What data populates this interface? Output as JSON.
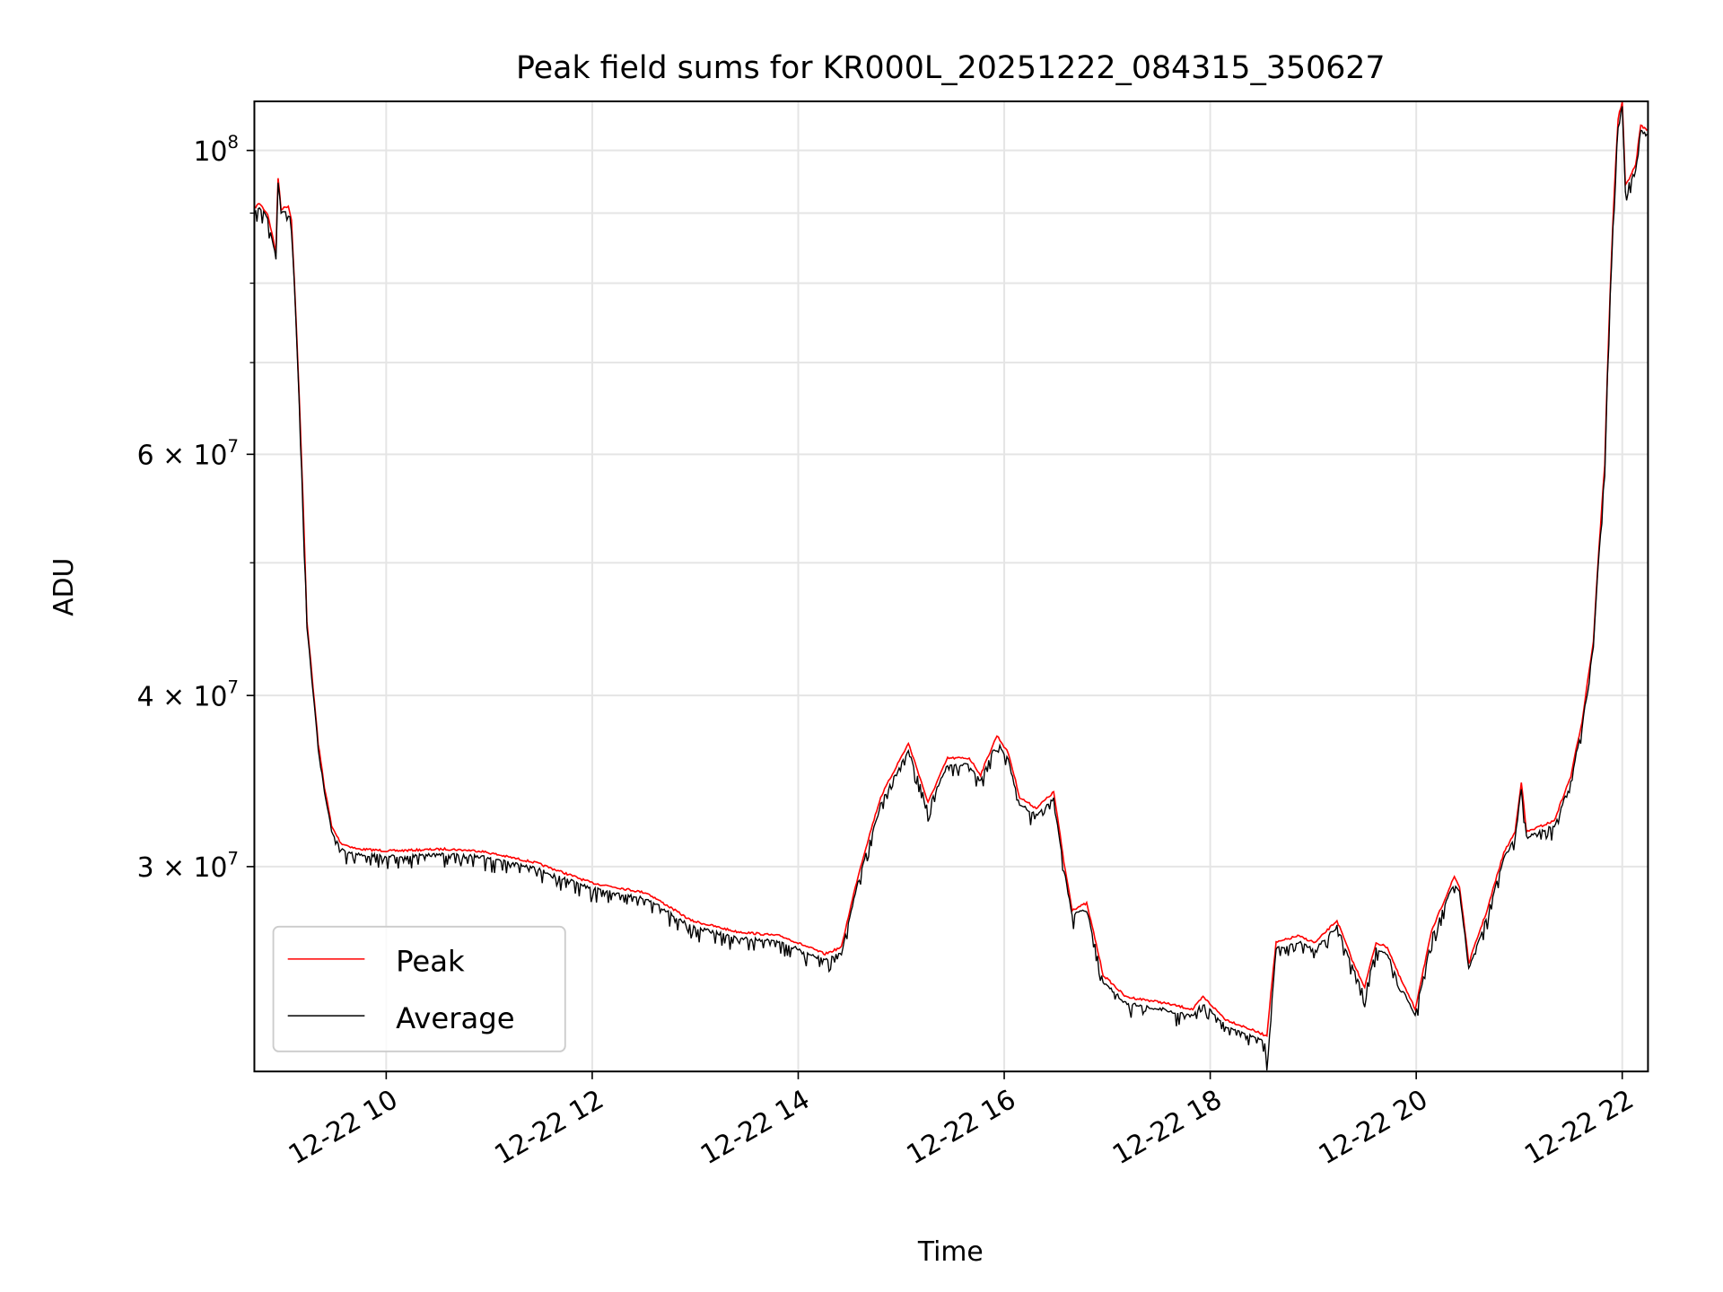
{
  "chart_data": {
    "type": "line",
    "title": "Peak field sums for KR000L_20251222_084315_350627",
    "xlabel": "Time",
    "ylabel": "ADU",
    "yscale": "log",
    "grid": true,
    "legend_position": "lower-left",
    "xlim_hours": [
      8.72,
      22.25
    ],
    "ylim": [
      21260000,
      108600000
    ],
    "x_ticks": [
      {
        "hour": 10,
        "label": "12-22 10"
      },
      {
        "hour": 12,
        "label": "12-22 12"
      },
      {
        "hour": 14,
        "label": "12-22 14"
      },
      {
        "hour": 16,
        "label": "12-22 16"
      },
      {
        "hour": 18,
        "label": "12-22 18"
      },
      {
        "hour": 20,
        "label": "12-22 20"
      },
      {
        "hour": 22,
        "label": "12-22 22"
      }
    ],
    "y_ticks": [
      {
        "value": 100000000,
        "mant": "",
        "base": "10",
        "exp": "8"
      },
      {
        "value": 60000000,
        "mant": "6 × ",
        "base": "10",
        "exp": "7"
      },
      {
        "value": 40000000,
        "mant": "4 × ",
        "base": "10",
        "exp": "7"
      },
      {
        "value": 30000000,
        "mant": "3 × ",
        "base": "10",
        "exp": "7"
      }
    ],
    "y_minor_ticks": [
      50000000,
      70000000,
      80000000,
      90000000
    ],
    "x_hours": [
      8.72,
      8.77,
      8.85,
      8.93,
      8.95,
      8.98,
      9.05,
      9.08,
      9.12,
      9.18,
      9.23,
      9.29,
      9.34,
      9.4,
      9.47,
      9.56,
      9.72,
      10.04,
      10.58,
      10.91,
      11.45,
      11.99,
      12.53,
      12.96,
      13.39,
      13.83,
      14.26,
      14.42,
      14.58,
      14.8,
      15.07,
      15.26,
      15.45,
      15.66,
      15.77,
      15.93,
      16.04,
      16.15,
      16.31,
      16.48,
      16.58,
      16.66,
      16.8,
      16.96,
      17.18,
      17.5,
      17.83,
      17.93,
      18.15,
      18.53,
      18.55,
      18.64,
      18.85,
      19.02,
      19.23,
      19.39,
      19.5,
      19.61,
      19.72,
      19.83,
      19.99,
      20.15,
      20.37,
      20.42,
      20.51,
      20.69,
      20.85,
      20.96,
      21.02,
      21.07,
      21.34,
      21.5,
      21.61,
      21.72,
      21.83,
      21.91,
      21.96,
      22.0,
      22.03,
      22.13,
      22.18,
      22.24
    ],
    "series": [
      {
        "name": "Peak",
        "color": "#ff0000",
        "unit": "1e7 ADU",
        "values": [
          9.08,
          9.15,
          8.98,
          8.42,
          9.55,
          9.06,
          9.11,
          8.9,
          7.66,
          5.89,
          4.53,
          4.05,
          3.69,
          3.43,
          3.21,
          3.12,
          3.09,
          3.08,
          3.09,
          3.08,
          3.02,
          2.92,
          2.87,
          2.74,
          2.69,
          2.67,
          2.59,
          2.62,
          2.95,
          3.37,
          3.69,
          3.34,
          3.6,
          3.6,
          3.5,
          3.74,
          3.63,
          3.37,
          3.31,
          3.4,
          3.02,
          2.79,
          2.82,
          2.5,
          2.41,
          2.39,
          2.36,
          2.41,
          2.32,
          2.26,
          2.26,
          2.64,
          2.67,
          2.64,
          2.74,
          2.55,
          2.45,
          2.64,
          2.62,
          2.5,
          2.36,
          2.69,
          2.95,
          2.9,
          2.55,
          2.79,
          3.07,
          3.18,
          3.46,
          3.18,
          3.24,
          3.49,
          3.83,
          4.38,
          5.89,
          8.9,
          10.55,
          10.85,
          9.42,
          9.75,
          10.44,
          10.34
        ]
      },
      {
        "name": "Average",
        "color": "#000000",
        "unit": "1e7 ADU",
        "values": [
          9.02,
          9.11,
          8.94,
          8.37,
          9.51,
          9.02,
          9.06,
          8.85,
          7.62,
          5.86,
          4.51,
          4.03,
          3.67,
          3.41,
          3.19,
          3.1,
          3.07,
          3.06,
          3.07,
          3.06,
          3.0,
          2.9,
          2.85,
          2.72,
          2.67,
          2.65,
          2.57,
          2.6,
          2.93,
          3.34,
          3.66,
          3.31,
          3.57,
          3.57,
          3.47,
          3.71,
          3.6,
          3.34,
          3.28,
          3.37,
          2.99,
          2.77,
          2.8,
          2.48,
          2.39,
          2.37,
          2.34,
          2.39,
          2.3,
          2.24,
          2.13,
          2.62,
          2.65,
          2.62,
          2.72,
          2.53,
          2.43,
          2.62,
          2.6,
          2.48,
          2.34,
          2.67,
          2.93,
          2.88,
          2.53,
          2.77,
          3.05,
          3.16,
          3.44,
          3.16,
          3.22,
          3.47,
          3.81,
          4.35,
          5.86,
          8.85,
          10.48,
          10.78,
          9.37,
          9.7,
          10.38,
          10.28
        ]
      }
    ]
  }
}
